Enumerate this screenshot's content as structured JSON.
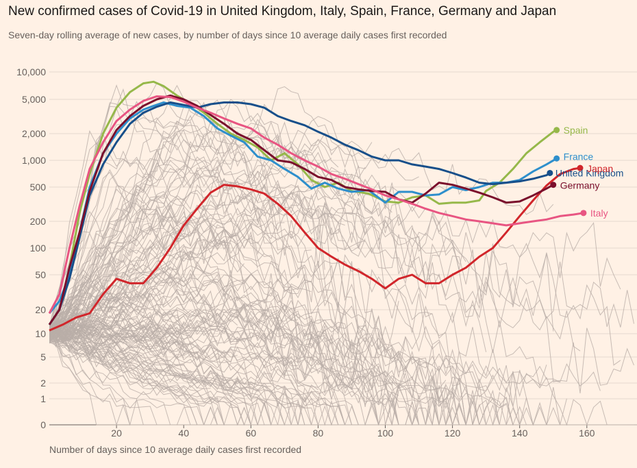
{
  "title": "New confirmed cases of Covid-19 in United Kingdom, Italy, Spain, France, Germany and Japan",
  "subtitle": "Seven-day rolling average of new cases, by number of days since 10 average daily cases first recorded",
  "chart_data": {
    "type": "line",
    "title": "New confirmed cases of Covid-19 in United Kingdom, Italy, Spain, France, Germany and Japan",
    "subtitle": "Seven-day rolling average of new cases, by number of days since 10 average daily cases first recorded",
    "xlabel": "Number of days since 10 average daily cases first recorded",
    "ylabel": "",
    "y_scale": "log",
    "xlim": [
      0,
      177
    ],
    "ylim": [
      0,
      10000
    ],
    "x_ticks": [
      20,
      40,
      60,
      80,
      100,
      120,
      140,
      160
    ],
    "x_tick_labels": [
      "20",
      "40",
      "60",
      "80",
      "100",
      "120",
      "140",
      "160"
    ],
    "y_ticks": [
      0,
      1,
      2,
      5,
      10,
      20,
      50,
      100,
      200,
      500,
      1000,
      2000,
      5000,
      10000
    ],
    "y_tick_labels": [
      "0",
      "1",
      "2",
      "5",
      "10",
      "20",
      "50",
      "100",
      "200",
      "500",
      "1,000",
      "2,000",
      "5,000",
      "10,000"
    ],
    "grid": true,
    "legend": "direct labels at line ends",
    "background_series_color": "#b9aea8",
    "series": [
      {
        "name": "Spain",
        "color": "#96b84a",
        "points": [
          [
            0,
            13
          ],
          [
            3,
            20
          ],
          [
            6,
            60
          ],
          [
            9,
            250
          ],
          [
            12,
            700
          ],
          [
            16,
            2000
          ],
          [
            20,
            4000
          ],
          [
            24,
            6000
          ],
          [
            28,
            7500
          ],
          [
            31,
            7800
          ],
          [
            34,
            7000
          ],
          [
            38,
            5500
          ],
          [
            42,
            4500
          ],
          [
            46,
            3500
          ],
          [
            50,
            2600
          ],
          [
            54,
            2000
          ],
          [
            58,
            1700
          ],
          [
            62,
            1400
          ],
          [
            66,
            1000
          ],
          [
            70,
            1200
          ],
          [
            74,
            900
          ],
          [
            78,
            600
          ],
          [
            82,
            500
          ],
          [
            86,
            560
          ],
          [
            90,
            450
          ],
          [
            95,
            420
          ],
          [
            100,
            340
          ],
          [
            104,
            330
          ],
          [
            108,
            380
          ],
          [
            112,
            400
          ],
          [
            116,
            320
          ],
          [
            120,
            330
          ],
          [
            124,
            330
          ],
          [
            128,
            350
          ],
          [
            130,
            450
          ],
          [
            134,
            560
          ],
          [
            138,
            800
          ],
          [
            142,
            1200
          ],
          [
            146,
            1600
          ],
          [
            150,
            2100
          ],
          [
            151,
            2200
          ]
        ]
      },
      {
        "name": "France",
        "color": "#2e8fcc",
        "points": [
          [
            0,
            18
          ],
          [
            3,
            25
          ],
          [
            6,
            50
          ],
          [
            9,
            150
          ],
          [
            12,
            500
          ],
          [
            16,
            1200
          ],
          [
            20,
            2000
          ],
          [
            24,
            3000
          ],
          [
            28,
            3800
          ],
          [
            31,
            4200
          ],
          [
            34,
            4600
          ],
          [
            38,
            4200
          ],
          [
            42,
            4000
          ],
          [
            46,
            3200
          ],
          [
            50,
            2300
          ],
          [
            54,
            1900
          ],
          [
            58,
            1600
          ],
          [
            62,
            1100
          ],
          [
            66,
            1000
          ],
          [
            70,
            800
          ],
          [
            74,
            650
          ],
          [
            78,
            480
          ],
          [
            82,
            560
          ],
          [
            86,
            480
          ],
          [
            90,
            440
          ],
          [
            95,
            460
          ],
          [
            100,
            330
          ],
          [
            104,
            440
          ],
          [
            108,
            440
          ],
          [
            112,
            400
          ],
          [
            116,
            410
          ],
          [
            120,
            500
          ],
          [
            124,
            460
          ],
          [
            128,
            500
          ],
          [
            132,
            560
          ],
          [
            136,
            560
          ],
          [
            140,
            600
          ],
          [
            144,
            750
          ],
          [
            148,
            900
          ],
          [
            151,
            1050
          ]
        ]
      },
      {
        "name": "United Kingdom",
        "color": "#174f8a",
        "points": [
          [
            0,
            13
          ],
          [
            3,
            20
          ],
          [
            6,
            45
          ],
          [
            9,
            130
          ],
          [
            12,
            400
          ],
          [
            16,
            900
          ],
          [
            20,
            1600
          ],
          [
            24,
            2600
          ],
          [
            28,
            3500
          ],
          [
            32,
            4100
          ],
          [
            36,
            4600
          ],
          [
            40,
            4300
          ],
          [
            44,
            4000
          ],
          [
            48,
            4400
          ],
          [
            52,
            4600
          ],
          [
            56,
            4600
          ],
          [
            60,
            4400
          ],
          [
            64,
            4000
          ],
          [
            68,
            3200
          ],
          [
            72,
            2800
          ],
          [
            76,
            2500
          ],
          [
            80,
            2100
          ],
          [
            84,
            1800
          ],
          [
            88,
            1500
          ],
          [
            92,
            1300
          ],
          [
            96,
            1100
          ],
          [
            100,
            1000
          ],
          [
            104,
            1000
          ],
          [
            108,
            900
          ],
          [
            112,
            850
          ],
          [
            116,
            800
          ],
          [
            120,
            720
          ],
          [
            124,
            640
          ],
          [
            128,
            560
          ],
          [
            132,
            540
          ],
          [
            136,
            560
          ],
          [
            140,
            580
          ],
          [
            144,
            620
          ],
          [
            148,
            680
          ],
          [
            149,
            720
          ]
        ]
      },
      {
        "name": "Japan",
        "color": "#d1262b",
        "points": [
          [
            0,
            11
          ],
          [
            4,
            13
          ],
          [
            8,
            16
          ],
          [
            12,
            18
          ],
          [
            16,
            30
          ],
          [
            20,
            45
          ],
          [
            24,
            40
          ],
          [
            28,
            40
          ],
          [
            32,
            60
          ],
          [
            36,
            100
          ],
          [
            40,
            180
          ],
          [
            44,
            280
          ],
          [
            48,
            430
          ],
          [
            52,
            530
          ],
          [
            56,
            510
          ],
          [
            60,
            470
          ],
          [
            64,
            420
          ],
          [
            68,
            320
          ],
          [
            72,
            230
          ],
          [
            76,
            150
          ],
          [
            80,
            100
          ],
          [
            84,
            80
          ],
          [
            88,
            65
          ],
          [
            92,
            55
          ],
          [
            96,
            45
          ],
          [
            100,
            35
          ],
          [
            104,
            45
          ],
          [
            108,
            50
          ],
          [
            112,
            40
          ],
          [
            116,
            40
          ],
          [
            120,
            50
          ],
          [
            124,
            60
          ],
          [
            128,
            80
          ],
          [
            132,
            100
          ],
          [
            136,
            150
          ],
          [
            140,
            230
          ],
          [
            144,
            350
          ],
          [
            148,
            520
          ],
          [
            152,
            700
          ],
          [
            156,
            800
          ],
          [
            158,
            820
          ]
        ]
      },
      {
        "name": "Germany",
        "color": "#7a0f2c",
        "points": [
          [
            0,
            13
          ],
          [
            3,
            20
          ],
          [
            6,
            60
          ],
          [
            9,
            150
          ],
          [
            12,
            450
          ],
          [
            16,
            1200
          ],
          [
            20,
            2200
          ],
          [
            24,
            3200
          ],
          [
            28,
            4200
          ],
          [
            32,
            5000
          ],
          [
            36,
            5500
          ],
          [
            40,
            5000
          ],
          [
            44,
            4200
          ],
          [
            48,
            3300
          ],
          [
            52,
            2600
          ],
          [
            56,
            2000
          ],
          [
            60,
            1700
          ],
          [
            64,
            1300
          ],
          [
            68,
            1000
          ],
          [
            72,
            950
          ],
          [
            76,
            800
          ],
          [
            80,
            650
          ],
          [
            84,
            600
          ],
          [
            88,
            500
          ],
          [
            92,
            470
          ],
          [
            96,
            450
          ],
          [
            100,
            440
          ],
          [
            104,
            360
          ],
          [
            108,
            330
          ],
          [
            112,
            420
          ],
          [
            116,
            560
          ],
          [
            120,
            530
          ],
          [
            124,
            480
          ],
          [
            128,
            430
          ],
          [
            132,
            380
          ],
          [
            136,
            330
          ],
          [
            140,
            340
          ],
          [
            144,
            400
          ],
          [
            148,
            480
          ],
          [
            150,
            530
          ]
        ]
      },
      {
        "name": "Italy",
        "color": "#e85582",
        "points": [
          [
            0,
            18
          ],
          [
            3,
            30
          ],
          [
            6,
            100
          ],
          [
            9,
            300
          ],
          [
            12,
            800
          ],
          [
            16,
            1600
          ],
          [
            20,
            2800
          ],
          [
            24,
            3800
          ],
          [
            28,
            4800
          ],
          [
            32,
            5400
          ],
          [
            36,
            5300
          ],
          [
            40,
            4700
          ],
          [
            44,
            4000
          ],
          [
            48,
            3500
          ],
          [
            52,
            3000
          ],
          [
            56,
            2600
          ],
          [
            60,
            2300
          ],
          [
            64,
            1800
          ],
          [
            68,
            1500
          ],
          [
            72,
            1200
          ],
          [
            76,
            1000
          ],
          [
            80,
            850
          ],
          [
            84,
            700
          ],
          [
            88,
            620
          ],
          [
            92,
            540
          ],
          [
            96,
            470
          ],
          [
            100,
            400
          ],
          [
            104,
            360
          ],
          [
            108,
            320
          ],
          [
            112,
            280
          ],
          [
            116,
            250
          ],
          [
            120,
            230
          ],
          [
            124,
            210
          ],
          [
            128,
            200
          ],
          [
            132,
            190
          ],
          [
            136,
            180
          ],
          [
            140,
            190
          ],
          [
            144,
            200
          ],
          [
            148,
            210
          ],
          [
            152,
            230
          ],
          [
            156,
            240
          ],
          [
            159,
            250
          ]
        ]
      }
    ]
  },
  "labels": {
    "spain": "Spain",
    "france": "France",
    "uk": "United Kingdom",
    "japan": "Japan",
    "germany": "Germany",
    "italy": "Italy"
  }
}
